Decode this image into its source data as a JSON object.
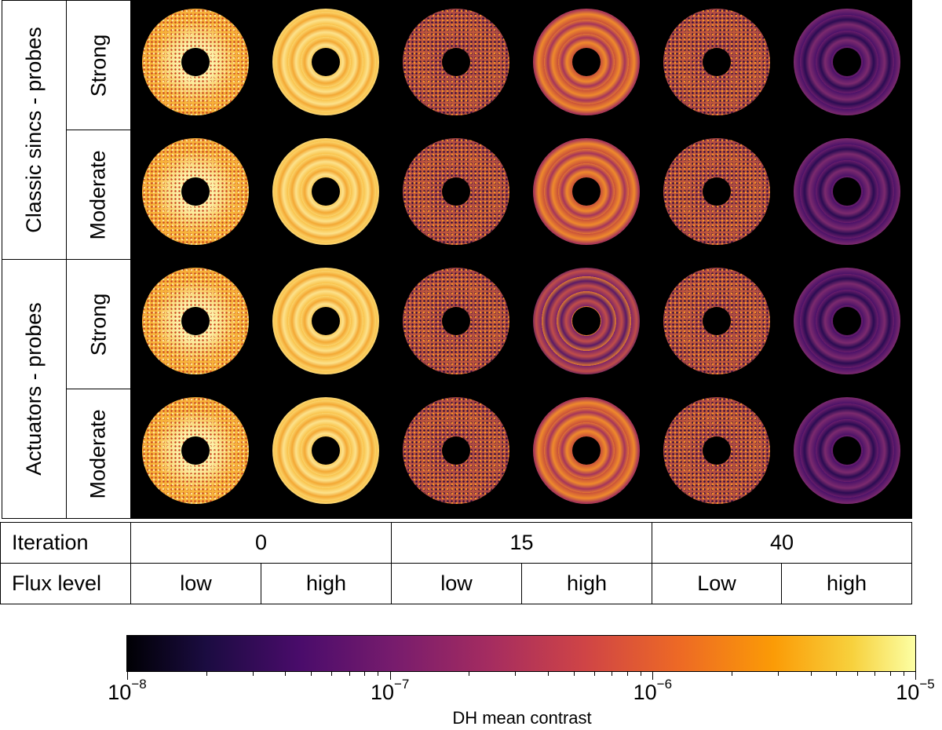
{
  "row_groups": [
    "Classic sincs - probes",
    "Actuators - probes"
  ],
  "probe_levels": [
    "Strong",
    "Moderate",
    "Strong",
    "Moderate"
  ],
  "table": {
    "iteration_label": "Iteration",
    "iterations": [
      "0",
      "15",
      "40"
    ],
    "flux_label": "Flux level",
    "flux_levels": [
      "low",
      "high",
      "low",
      "high",
      "Low",
      "high"
    ]
  },
  "maps": [
    [
      "bright-noisy",
      "bright-smooth",
      "dim-noisy",
      "mid-smooth",
      "dim-noisy",
      "dark-smooth"
    ],
    [
      "bright-noisy",
      "bright-smooth",
      "dim-noisy",
      "mid-smooth",
      "dim-noisy",
      "dark-smooth"
    ],
    [
      "bright-noisy",
      "bright-smooth",
      "dim-noisy",
      "midlow-smooth",
      "dim-noisy",
      "dark-smooth"
    ],
    [
      "bright-noisy",
      "bright-smooth",
      "dim-noisy",
      "mid-smooth",
      "dim-noisy",
      "dark-smooth"
    ]
  ],
  "colorbar": {
    "label": "DH mean contrast",
    "colormap": "inferno",
    "scale": "log",
    "min_exponent": -8,
    "max_exponent": -5,
    "major_ticks": [
      {
        "base": "10",
        "exp": "−8",
        "value": -8
      },
      {
        "base": "10",
        "exp": "−7",
        "value": -7
      },
      {
        "base": "10",
        "exp": "−6",
        "value": -6
      },
      {
        "base": "10",
        "exp": "−5",
        "value": -5
      }
    ]
  }
}
